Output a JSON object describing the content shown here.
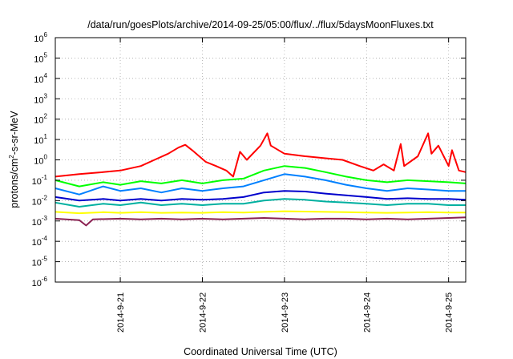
{
  "chart_data": {
    "type": "line",
    "title": "/data/run/goesPlots/archive/2014-09-25/05:00/flux/../flux/5daysMoonFluxes.txt",
    "xlabel": "Coordinated Universal Time (UTC)",
    "ylabel": {
      "base": "protons/cm",
      "sup": "2",
      "rest": "-s-sr-MeV"
    },
    "y_scale": "log",
    "ylim": [
      1e-06,
      1000000.0
    ],
    "y_ticks": [
      {
        "base": "10",
        "exp": "6",
        "value": 1000000.0
      },
      {
        "base": "10",
        "exp": "5",
        "value": 100000.0
      },
      {
        "base": "10",
        "exp": "4",
        "value": 10000.0
      },
      {
        "base": "10",
        "exp": "3",
        "value": 1000.0
      },
      {
        "base": "10",
        "exp": "2",
        "value": 100.0
      },
      {
        "base": "10",
        "exp": "1",
        "value": 10.0
      },
      {
        "base": "10",
        "exp": "0",
        "value": 1.0
      },
      {
        "base": "10",
        "exp": "-1",
        "value": 0.1
      },
      {
        "base": "10",
        "exp": "-2",
        "value": 0.01
      },
      {
        "base": "10",
        "exp": "-3",
        "value": 0.001
      },
      {
        "base": "10",
        "exp": "-4",
        "value": 0.0001
      },
      {
        "base": "10",
        "exp": "-5",
        "value": 1e-05
      },
      {
        "base": "10",
        "exp": "-6",
        "value": 1e-06
      }
    ],
    "xlim": [
      "2014-09-20T05:00",
      "2014-09-25T05:00"
    ],
    "x_ticks": [
      "2014-9-21",
      "2014-9-22",
      "2014-9-23",
      "2014-9-24",
      "2014-9-25"
    ],
    "grid": true,
    "series": [
      {
        "color": "#ff0000",
        "points": [
          [
            "2014-09-20T05:00",
            0.15
          ],
          [
            "2014-09-20T12:00",
            0.2
          ],
          [
            "2014-09-20T19:00",
            0.25
          ],
          [
            "2014-09-21T00:00",
            0.3
          ],
          [
            "2014-09-21T06:00",
            0.5
          ],
          [
            "2014-09-21T10:00",
            1.0
          ],
          [
            "2014-09-21T14:00",
            2.0
          ],
          [
            "2014-09-21T17:00",
            4.0
          ],
          [
            "2014-09-21T19:00",
            5.5
          ],
          [
            "2014-09-21T21:00",
            3.0
          ],
          [
            "2014-09-22T01:00",
            0.8
          ],
          [
            "2014-09-22T04:00",
            0.5
          ],
          [
            "2014-09-22T07:00",
            0.3
          ],
          [
            "2014-09-22T09:00",
            0.15
          ],
          [
            "2014-09-22T11:00",
            2.5
          ],
          [
            "2014-09-22T13:00",
            1.0
          ],
          [
            "2014-09-22T17:00",
            5.0
          ],
          [
            "2014-09-22T19:00",
            20.0
          ],
          [
            "2014-09-22T20:00",
            5.0
          ],
          [
            "2014-09-23T00:00",
            2.0
          ],
          [
            "2014-09-23T06:00",
            1.5
          ],
          [
            "2014-09-23T12:00",
            1.2
          ],
          [
            "2014-09-23T17:00",
            1.0
          ],
          [
            "2014-09-23T22:00",
            0.5
          ],
          [
            "2014-09-24T02:00",
            0.3
          ],
          [
            "2014-09-24T05:00",
            0.6
          ],
          [
            "2014-09-24T08:00",
            0.3
          ],
          [
            "2014-09-24T10:00",
            6.0
          ],
          [
            "2014-09-24T11:00",
            0.5
          ],
          [
            "2014-09-24T15:00",
            1.5
          ],
          [
            "2014-09-24T18:00",
            20.0
          ],
          [
            "2014-09-24T19:00",
            2.0
          ],
          [
            "2014-09-24T21:00",
            5.0
          ],
          [
            "2014-09-25T00:00",
            0.5
          ],
          [
            "2014-09-25T01:00",
            3.0
          ],
          [
            "2014-09-25T03:00",
            0.3
          ],
          [
            "2014-09-25T05:00",
            0.25
          ]
        ]
      },
      {
        "color": "#00ff00",
        "points": [
          [
            "2014-09-20T05:00",
            0.1
          ],
          [
            "2014-09-20T12:00",
            0.05
          ],
          [
            "2014-09-20T19:00",
            0.08
          ],
          [
            "2014-09-21T00:00",
            0.06
          ],
          [
            "2014-09-21T06:00",
            0.09
          ],
          [
            "2014-09-21T12:00",
            0.07
          ],
          [
            "2014-09-21T18:00",
            0.1
          ],
          [
            "2014-09-22T00:00",
            0.07
          ],
          [
            "2014-09-22T06:00",
            0.1
          ],
          [
            "2014-09-22T12:00",
            0.12
          ],
          [
            "2014-09-22T18:00",
            0.3
          ],
          [
            "2014-09-23T00:00",
            0.5
          ],
          [
            "2014-09-23T06:00",
            0.4
          ],
          [
            "2014-09-23T12:00",
            0.25
          ],
          [
            "2014-09-23T18:00",
            0.15
          ],
          [
            "2014-09-24T00:00",
            0.1
          ],
          [
            "2014-09-24T06:00",
            0.08
          ],
          [
            "2014-09-24T12:00",
            0.1
          ],
          [
            "2014-09-24T18:00",
            0.09
          ],
          [
            "2014-09-25T00:00",
            0.08
          ],
          [
            "2014-09-25T05:00",
            0.07
          ]
        ]
      },
      {
        "color": "#0080ff",
        "points": [
          [
            "2014-09-20T05:00",
            0.04
          ],
          [
            "2014-09-20T12:00",
            0.02
          ],
          [
            "2014-09-20T19:00",
            0.05
          ],
          [
            "2014-09-21T00:00",
            0.03
          ],
          [
            "2014-09-21T06:00",
            0.04
          ],
          [
            "2014-09-21T12:00",
            0.025
          ],
          [
            "2014-09-21T18:00",
            0.04
          ],
          [
            "2014-09-22T00:00",
            0.03
          ],
          [
            "2014-09-22T06:00",
            0.04
          ],
          [
            "2014-09-22T12:00",
            0.05
          ],
          [
            "2014-09-22T18:00",
            0.1
          ],
          [
            "2014-09-23T00:00",
            0.2
          ],
          [
            "2014-09-23T06:00",
            0.15
          ],
          [
            "2014-09-23T12:00",
            0.1
          ],
          [
            "2014-09-23T18:00",
            0.06
          ],
          [
            "2014-09-24T00:00",
            0.04
          ],
          [
            "2014-09-24T06:00",
            0.03
          ],
          [
            "2014-09-24T12:00",
            0.04
          ],
          [
            "2014-09-24T18:00",
            0.035
          ],
          [
            "2014-09-25T00:00",
            0.03
          ],
          [
            "2014-09-25T05:00",
            0.03
          ]
        ]
      },
      {
        "color": "#0000cc",
        "points": [
          [
            "2014-09-20T05:00",
            0.015
          ],
          [
            "2014-09-20T12:00",
            0.01
          ],
          [
            "2014-09-20T19:00",
            0.012
          ],
          [
            "2014-09-21T00:00",
            0.01
          ],
          [
            "2014-09-21T06:00",
            0.012
          ],
          [
            "2014-09-21T12:00",
            0.01
          ],
          [
            "2014-09-21T18:00",
            0.012
          ],
          [
            "2014-09-22T00:00",
            0.011
          ],
          [
            "2014-09-22T06:00",
            0.012
          ],
          [
            "2014-09-22T12:00",
            0.015
          ],
          [
            "2014-09-22T18:00",
            0.025
          ],
          [
            "2014-09-23T00:00",
            0.03
          ],
          [
            "2014-09-23T06:00",
            0.028
          ],
          [
            "2014-09-23T12:00",
            0.022
          ],
          [
            "2014-09-23T18:00",
            0.018
          ],
          [
            "2014-09-24T00:00",
            0.015
          ],
          [
            "2014-09-24T06:00",
            0.012
          ],
          [
            "2014-09-24T12:00",
            0.013
          ],
          [
            "2014-09-24T18:00",
            0.012
          ],
          [
            "2014-09-25T00:00",
            0.012
          ],
          [
            "2014-09-25T05:00",
            0.011
          ]
        ]
      },
      {
        "color": "#00b0a0",
        "points": [
          [
            "2014-09-20T05:00",
            0.008
          ],
          [
            "2014-09-20T12:00",
            0.005
          ],
          [
            "2014-09-20T19:00",
            0.007
          ],
          [
            "2014-09-21T00:00",
            0.006
          ],
          [
            "2014-09-21T06:00",
            0.008
          ],
          [
            "2014-09-21T12:00",
            0.006
          ],
          [
            "2014-09-21T18:00",
            0.007
          ],
          [
            "2014-09-22T00:00",
            0.006
          ],
          [
            "2014-09-22T06:00",
            0.007
          ],
          [
            "2014-09-22T12:00",
            0.007
          ],
          [
            "2014-09-22T18:00",
            0.01
          ],
          [
            "2014-09-23T00:00",
            0.012
          ],
          [
            "2014-09-23T06:00",
            0.011
          ],
          [
            "2014-09-23T12:00",
            0.009
          ],
          [
            "2014-09-23T18:00",
            0.008
          ],
          [
            "2014-09-24T00:00",
            0.007
          ],
          [
            "2014-09-24T06:00",
            0.006
          ],
          [
            "2014-09-24T12:00",
            0.007
          ],
          [
            "2014-09-24T18:00",
            0.007
          ],
          [
            "2014-09-25T00:00",
            0.006
          ],
          [
            "2014-09-25T05:00",
            0.006
          ]
        ]
      },
      {
        "color": "#ffff00",
        "points": [
          [
            "2014-09-20T05:00",
            0.0028
          ],
          [
            "2014-09-20T12:00",
            0.0024
          ],
          [
            "2014-09-20T19:00",
            0.0027
          ],
          [
            "2014-09-21T00:00",
            0.0025
          ],
          [
            "2014-09-21T06:00",
            0.0027
          ],
          [
            "2014-09-21T12:00",
            0.0025
          ],
          [
            "2014-09-21T18:00",
            0.0026
          ],
          [
            "2014-09-22T00:00",
            0.0025
          ],
          [
            "2014-09-22T06:00",
            0.0027
          ],
          [
            "2014-09-22T12:00",
            0.0026
          ],
          [
            "2014-09-22T18:00",
            0.0028
          ],
          [
            "2014-09-23T00:00",
            0.003
          ],
          [
            "2014-09-23T06:00",
            0.0029
          ],
          [
            "2014-09-23T12:00",
            0.0028
          ],
          [
            "2014-09-23T18:00",
            0.0027
          ],
          [
            "2014-09-24T00:00",
            0.0026
          ],
          [
            "2014-09-24T06:00",
            0.0025
          ],
          [
            "2014-09-24T12:00",
            0.0026
          ],
          [
            "2014-09-24T18:00",
            0.0027
          ],
          [
            "2014-09-25T00:00",
            0.0026
          ],
          [
            "2014-09-25T05:00",
            0.0026
          ]
        ]
      },
      {
        "color": "#8b2252",
        "points": [
          [
            "2014-09-20T05:00",
            0.0013
          ],
          [
            "2014-09-20T12:00",
            0.0011
          ],
          [
            "2014-09-20T14:00",
            0.0006
          ],
          [
            "2014-09-20T16:00",
            0.0012
          ],
          [
            "2014-09-21T00:00",
            0.0013
          ],
          [
            "2014-09-21T06:00",
            0.0012
          ],
          [
            "2014-09-21T12:00",
            0.0013
          ],
          [
            "2014-09-21T18:00",
            0.0012
          ],
          [
            "2014-09-22T00:00",
            0.0013
          ],
          [
            "2014-09-22T06:00",
            0.0012
          ],
          [
            "2014-09-22T12:00",
            0.0013
          ],
          [
            "2014-09-22T18:00",
            0.0014
          ],
          [
            "2014-09-23T00:00",
            0.0013
          ],
          [
            "2014-09-23T06:00",
            0.0012
          ],
          [
            "2014-09-23T12:00",
            0.0013
          ],
          [
            "2014-09-23T18:00",
            0.0013
          ],
          [
            "2014-09-24T00:00",
            0.0012
          ],
          [
            "2014-09-24T06:00",
            0.0013
          ],
          [
            "2014-09-24T12:00",
            0.0012
          ],
          [
            "2014-09-24T18:00",
            0.0013
          ],
          [
            "2014-09-25T00:00",
            0.0014
          ],
          [
            "2014-09-25T05:00",
            0.0015
          ]
        ]
      }
    ]
  }
}
